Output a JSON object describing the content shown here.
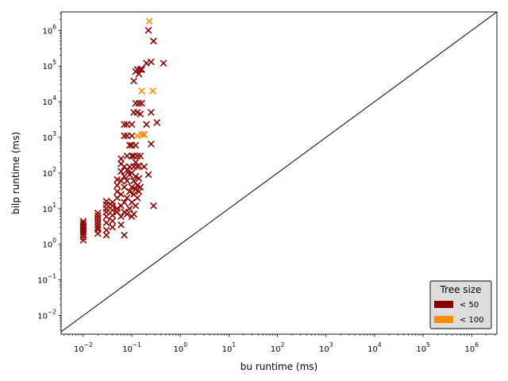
{
  "chart_data": {
    "type": "scatter",
    "xlabel": "bu runtime (ms)",
    "ylabel": "bilp runtime (ms)",
    "x_scale": "log",
    "y_scale": "log",
    "xlim": [
      0.0035,
      3300000
    ],
    "ylim": [
      0.003,
      3300000
    ],
    "x_ticks": [
      {
        "value": 0.01,
        "base": "10",
        "exp": "−2"
      },
      {
        "value": 0.1,
        "base": "10",
        "exp": "−1"
      },
      {
        "value": 1,
        "base": "10",
        "exp": "0"
      },
      {
        "value": 10,
        "base": "10",
        "exp": "1"
      },
      {
        "value": 100,
        "base": "10",
        "exp": "2"
      },
      {
        "value": 1000,
        "base": "10",
        "exp": "3"
      },
      {
        "value": 10000,
        "base": "10",
        "exp": "4"
      },
      {
        "value": 100000,
        "base": "10",
        "exp": "5"
      },
      {
        "value": 1000000,
        "base": "10",
        "exp": "6"
      }
    ],
    "y_ticks": [
      {
        "value": 0.01,
        "base": "10",
        "exp": "−2"
      },
      {
        "value": 0.1,
        "base": "10",
        "exp": "−1"
      },
      {
        "value": 1,
        "base": "10",
        "exp": "0"
      },
      {
        "value": 10,
        "base": "10",
        "exp": "1"
      },
      {
        "value": 100,
        "base": "10",
        "exp": "2"
      },
      {
        "value": 1000,
        "base": "10",
        "exp": "3"
      },
      {
        "value": 10000,
        "base": "10",
        "exp": "4"
      },
      {
        "value": 100000,
        "base": "10",
        "exp": "5"
      },
      {
        "value": 1000000,
        "base": "10",
        "exp": "6"
      }
    ],
    "reference_line": "y = x",
    "grid": false,
    "legend": {
      "title": "Tree size",
      "placement": "lower-right"
    },
    "series": [
      {
        "name": "< 50",
        "color": "#8b0000",
        "marker": "x",
        "points": [
          [
            0.01,
            1.3
          ],
          [
            0.01,
            1.6
          ],
          [
            0.01,
            1.9
          ],
          [
            0.01,
            2.2
          ],
          [
            0.01,
            2.5
          ],
          [
            0.01,
            2.9
          ],
          [
            0.01,
            3.3
          ],
          [
            0.01,
            3.8
          ],
          [
            0.01,
            4.4
          ],
          [
            0.02,
            2.0
          ],
          [
            0.02,
            2.6
          ],
          [
            0.02,
            3.0
          ],
          [
            0.02,
            3.6
          ],
          [
            0.02,
            4.3
          ],
          [
            0.02,
            5.2
          ],
          [
            0.02,
            6.3
          ],
          [
            0.02,
            7.5
          ],
          [
            0.03,
            1.8
          ],
          [
            0.03,
            2.5
          ],
          [
            0.03,
            4.0
          ],
          [
            0.03,
            6.0
          ],
          [
            0.03,
            8.0
          ],
          [
            0.03,
            10
          ],
          [
            0.03,
            13
          ],
          [
            0.03,
            16
          ],
          [
            0.04,
            3.0
          ],
          [
            0.04,
            4.5
          ],
          [
            0.04,
            6.5
          ],
          [
            0.04,
            9.0
          ],
          [
            0.04,
            12
          ],
          [
            0.04,
            15
          ],
          [
            0.05,
            20
          ],
          [
            0.05,
            30
          ],
          [
            0.05,
            45
          ],
          [
            0.05,
            65
          ],
          [
            0.05,
            10
          ],
          [
            0.05,
            8.0
          ],
          [
            0.06,
            3.5
          ],
          [
            0.06,
            6.0
          ],
          [
            0.06,
            12
          ],
          [
            0.06,
            25
          ],
          [
            0.06,
            60
          ],
          [
            0.06,
            110
          ],
          [
            0.06,
            180
          ],
          [
            0.06,
            250
          ],
          [
            0.07,
            1.8
          ],
          [
            0.07,
            8.0
          ],
          [
            0.07,
            15
          ],
          [
            0.07,
            40
          ],
          [
            0.07,
            80
          ],
          [
            0.07,
            150
          ],
          [
            0.07,
            1100
          ],
          [
            0.07,
            2300
          ],
          [
            0.08,
            7.0
          ],
          [
            0.08,
            20
          ],
          [
            0.08,
            60
          ],
          [
            0.08,
            120
          ],
          [
            0.08,
            300
          ],
          [
            0.08,
            1100
          ],
          [
            0.08,
            2300
          ],
          [
            0.09,
            10
          ],
          [
            0.09,
            30
          ],
          [
            0.09,
            90
          ],
          [
            0.09,
            150
          ],
          [
            0.09,
            600
          ],
          [
            0.1,
            6.0
          ],
          [
            0.1,
            15
          ],
          [
            0.1,
            40
          ],
          [
            0.1,
            100
          ],
          [
            0.1,
            300
          ],
          [
            0.1,
            600
          ],
          [
            0.1,
            1100
          ],
          [
            0.1,
            2300
          ],
          [
            0.11,
            7.0
          ],
          [
            0.11,
            25
          ],
          [
            0.11,
            60
          ],
          [
            0.11,
            150
          ],
          [
            0.11,
            300
          ],
          [
            0.11,
            5000
          ],
          [
            0.11,
            38000
          ],
          [
            0.12,
            12
          ],
          [
            0.12,
            35
          ],
          [
            0.12,
            80
          ],
          [
            0.12,
            200
          ],
          [
            0.12,
            600
          ],
          [
            0.12,
            9000
          ],
          [
            0.12,
            70000
          ],
          [
            0.13,
            20
          ],
          [
            0.13,
            45
          ],
          [
            0.13,
            150
          ],
          [
            0.13,
            300
          ],
          [
            0.13,
            5000
          ],
          [
            0.13,
            80000
          ],
          [
            0.14,
            30
          ],
          [
            0.14,
            70
          ],
          [
            0.14,
            160
          ],
          [
            0.14,
            9000
          ],
          [
            0.14,
            60000
          ],
          [
            0.15,
            40
          ],
          [
            0.15,
            300
          ],
          [
            0.15,
            4500
          ],
          [
            0.15,
            80000
          ],
          [
            0.16,
            9000
          ],
          [
            0.16,
            80000
          ],
          [
            0.18,
            150
          ],
          [
            0.18,
            1200
          ],
          [
            0.2,
            2300
          ],
          [
            0.2,
            120000
          ],
          [
            0.22,
            90
          ],
          [
            0.22,
            1000000
          ],
          [
            0.25,
            650
          ],
          [
            0.25,
            5000
          ],
          [
            0.25,
            130000
          ],
          [
            0.28,
            12
          ],
          [
            0.28,
            500000
          ],
          [
            0.33,
            2600
          ],
          [
            0.45,
            120000
          ]
        ]
      },
      {
        "name": "< 100",
        "color": "#ff8c00",
        "marker": "x",
        "points": [
          [
            0.13,
            1100
          ],
          [
            0.16,
            1200
          ],
          [
            0.18,
            1200
          ],
          [
            0.16,
            20000
          ],
          [
            0.27,
            20000
          ],
          [
            0.23,
            1800000
          ]
        ]
      }
    ]
  }
}
